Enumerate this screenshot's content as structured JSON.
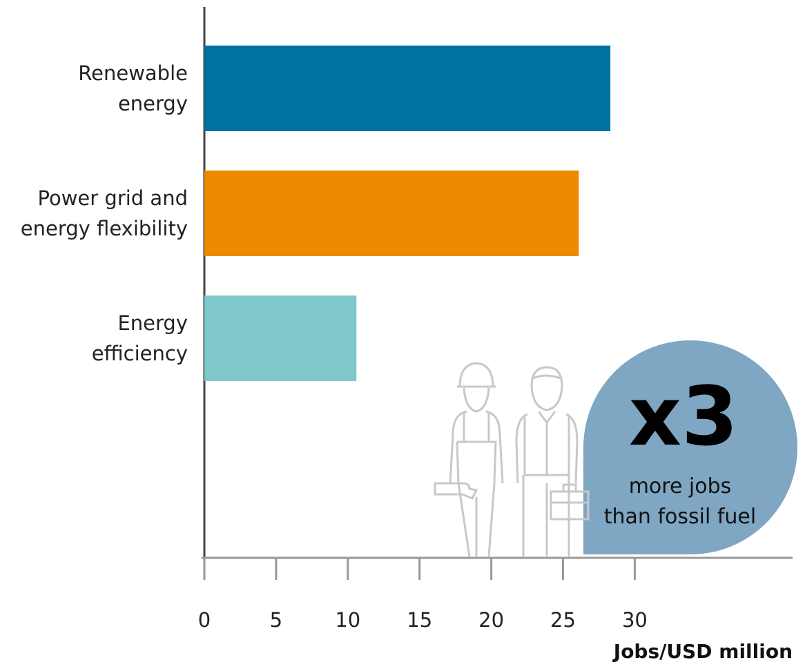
{
  "chart_data": {
    "type": "bar",
    "orientation": "horizontal",
    "categories": [
      "Renewable\nenergy",
      "Power grid and\nenergy flexibility",
      "Energy\nefficiency"
    ],
    "values": [
      28.3,
      26.1,
      10.6
    ],
    "colors": [
      "#0072a0",
      "#ee8a00",
      "#7ec8cc"
    ],
    "xlim": [
      0,
      41
    ],
    "xticks": [
      0,
      5,
      10,
      15,
      20,
      25,
      30
    ],
    "xlabel": "Jobs/USD million",
    "annotation": {
      "multiplier": "x3",
      "text": "more jobs\nthan fossil fuel"
    }
  }
}
